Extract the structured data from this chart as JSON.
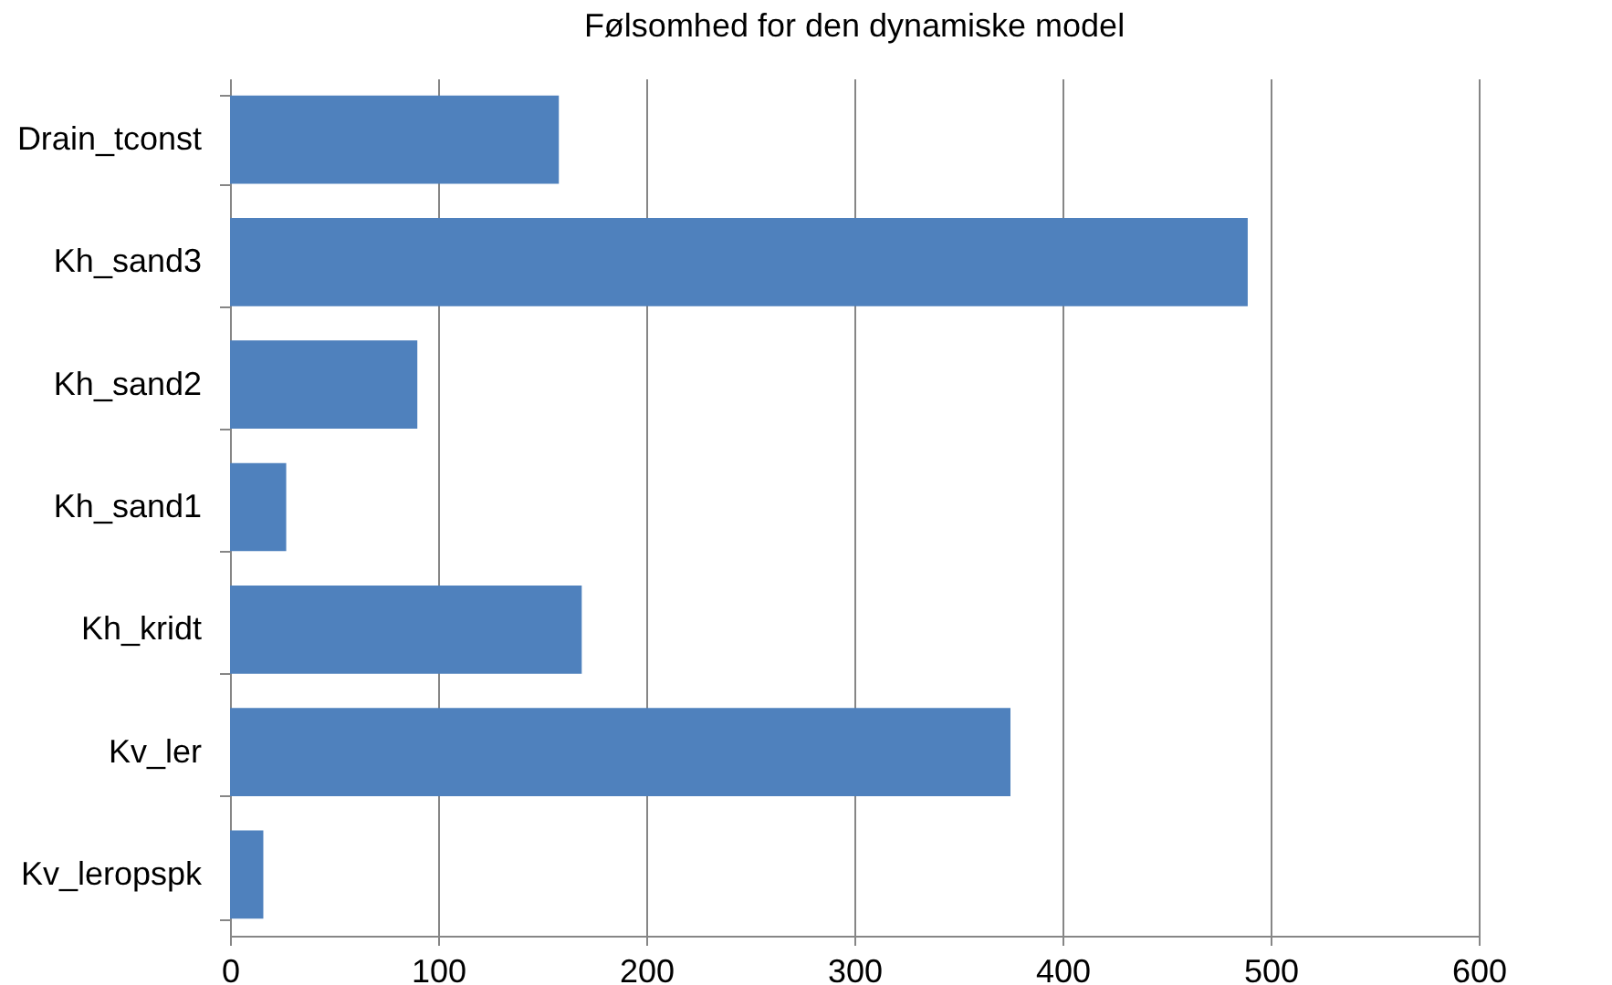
{
  "chart_data": {
    "type": "bar",
    "orientation": "horizontal",
    "title": "Følsomhed for den dynamiske model",
    "categories": [
      "Drain_tconst",
      "Kh_sand3",
      "Kh_sand2",
      "Kh_sand1",
      "Kh_kridt",
      "Kv_ler",
      "Kv_leropspk"
    ],
    "values": [
      158,
      489,
      90,
      27,
      169,
      375,
      16
    ],
    "color": "#4f81bd",
    "xlim": [
      0,
      600
    ],
    "xticks": [
      0,
      100,
      200,
      300,
      400,
      500,
      600
    ],
    "grid": "x"
  }
}
